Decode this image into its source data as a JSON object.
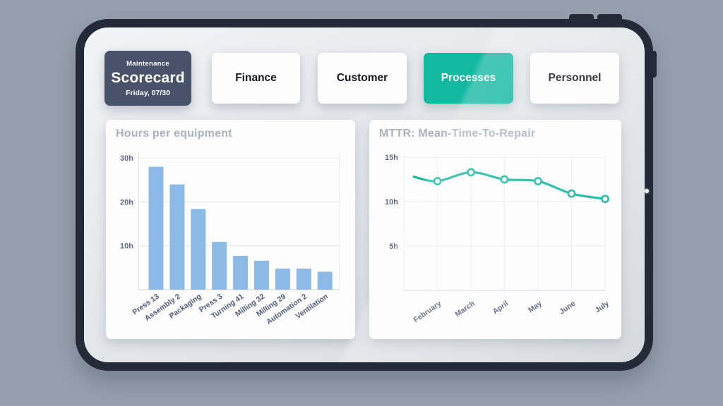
{
  "header": {
    "scorecard": {
      "eyebrow": "Maintenance",
      "title": "Scorecard",
      "date": "Friday, 07/30"
    },
    "tabs": [
      {
        "id": "finance",
        "label": "Finance",
        "active": false
      },
      {
        "id": "customer",
        "label": "Customer",
        "active": false
      },
      {
        "id": "processes",
        "label": "Processes",
        "active": true
      },
      {
        "id": "personnel",
        "label": "Personnel",
        "active": false
      }
    ]
  },
  "colors": {
    "accent": "#12b8a0",
    "bar": "#8db9e6",
    "scorecard_bg": "#48536a",
    "card_title": "#a9b2c1",
    "tick_label": "#5f6d86"
  },
  "chart_data": [
    {
      "type": "bar",
      "title": "Hours per equipment",
      "categories": [
        "Press 13",
        "Assembly 2",
        "Packaging",
        "Press 3",
        "Turning 41",
        "Milling 32",
        "Milling 29",
        "Automation 2",
        "Ventilation"
      ],
      "values": [
        28,
        24,
        18.4,
        10.9,
        7.7,
        6.6,
        4.8,
        4.8,
        4.1
      ],
      "ylabel": "hours",
      "yticks": [
        10,
        20,
        30
      ],
      "ytick_suffix": "h",
      "ylim": [
        0,
        31
      ],
      "grid": true,
      "legend": "none"
    },
    {
      "type": "line",
      "title": "MTTR: Mean-Time-To-Repair",
      "categories": [
        "February",
        "March",
        "April",
        "May",
        "June",
        "July"
      ],
      "values": [
        12.3,
        13.3,
        12.5,
        12.3,
        10.9,
        10.3
      ],
      "lead_in_value": 12.8,
      "ylabel": "hours",
      "yticks": [
        5,
        10,
        15
      ],
      "ytick_suffix": "h",
      "ylim": [
        0,
        15
      ],
      "grid": true,
      "legend": "none",
      "line_color": "#12b8a0",
      "marker": "open-circle"
    }
  ]
}
